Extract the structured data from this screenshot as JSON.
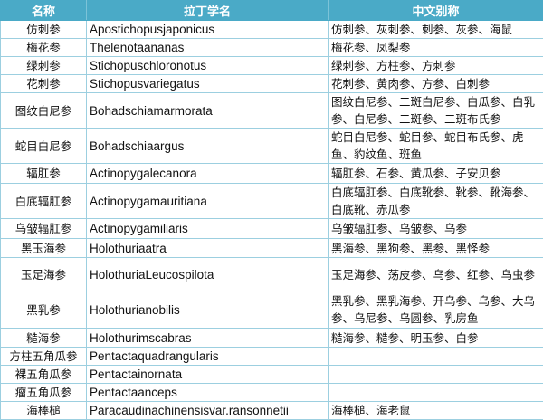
{
  "header": {
    "name": "名称",
    "latin": "拉丁学名",
    "alias": "中文别称"
  },
  "header_color": "#4aaac7",
  "rows": [
    {
      "name": "仿刺参",
      "latin": "Apostichopusjaponicus",
      "alias": "仿刺参、灰刺参、刺参、灰参、海鼠"
    },
    {
      "name": "梅花参",
      "latin": "Thelenotaananas",
      "alias": "梅花参、凤梨参"
    },
    {
      "name": "绿刺参",
      "latin": "Stichopuschloronotus",
      "alias": "绿刺参、方柱参、方刺参"
    },
    {
      "name": "花刺参",
      "latin": "Stichopusvariegatus",
      "alias": "花刺参、黄肉参、方参、白刺参"
    },
    {
      "name": "图纹白尼参",
      "latin": "Bohadschiamarmorata",
      "alias": "图纹白尼参、二斑白尼参、白瓜参、白乳参、白尼参、二斑参、二斑布氏参"
    },
    {
      "name": "蛇目白尼参",
      "latin": "Bohadschiaargus",
      "alias": "蛇目白尼参、蛇目参、蛇目布氏参、虎鱼、豹纹鱼、斑鱼"
    },
    {
      "name": "辐肛参",
      "latin": "Actinopygalecanora",
      "alias": "辐肛参、石参、黄瓜参、子安贝参"
    },
    {
      "name": "白底辐肛参",
      "latin": "Actinopygamauritiana",
      "alias": "白底辐肛参、白底靴参、靴参、靴海参、白底靴、赤瓜参"
    },
    {
      "name": "乌皱辐肛参",
      "latin": "Actinopygamiliaris",
      "alias": "乌皱辐肛参、乌皱参、乌参"
    },
    {
      "name": "黑玉海参",
      "latin": "Holothuriaatra",
      "alias": "黑海参、黑狗参、黑参、黑怪参"
    },
    {
      "name": "玉足海参",
      "latin": "HolothuriaLeucospilota",
      "alias": "玉足海参、荡皮参、乌参、红参、乌虫参"
    },
    {
      "name": "黑乳参",
      "latin": "Holothurianobilis",
      "alias": "黑乳参、黑乳海参、开乌参、乌参、大乌参、乌尼参、乌圆参、乳房鱼"
    },
    {
      "name": "糙海参",
      "latin": "Holothurimscabras",
      "alias": "糙海参、糙参、明玉参、白参"
    },
    {
      "name": "方柱五角瓜参",
      "latin": "Pentactaquadrangularis",
      "alias": ""
    },
    {
      "name": "裸五角瓜参",
      "latin": "Pentactainornata",
      "alias": ""
    },
    {
      "name": "瘤五角瓜参",
      "latin": "Pentactaanceps",
      "alias": ""
    },
    {
      "name": "海棒槌",
      "latin": "Paracaudinachinensisvar.ransonnetii",
      "alias": "海棒槌、海老鼠"
    }
  ]
}
